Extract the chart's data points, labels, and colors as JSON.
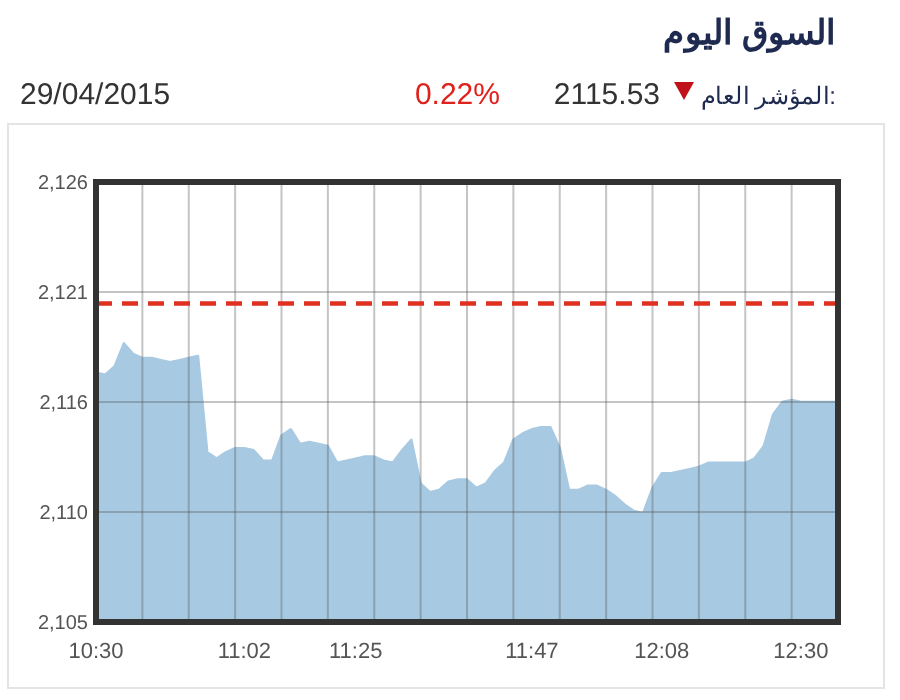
{
  "chart_data": {
    "type": "area",
    "title": "السوق اليوم",
    "annotations": [
      "المؤشر العام:",
      "2115.53",
      "0.22%",
      "29/04/2015"
    ],
    "categories": [
      "10:30",
      null,
      null,
      null,
      null,
      null,
      null,
      null,
      null,
      null,
      null,
      null,
      null,
      null,
      null,
      null,
      "11:02",
      null,
      null,
      null,
      null,
      null,
      null,
      null,
      null,
      null,
      null,
      null,
      "11:25",
      null,
      null,
      null,
      null,
      null,
      null,
      null,
      null,
      null,
      null,
      null,
      null,
      null,
      null,
      null,
      null,
      null,
      null,
      "11:47",
      null,
      null,
      null,
      null,
      null,
      null,
      null,
      null,
      null,
      null,
      null,
      null,
      null,
      "12:08",
      null,
      null,
      null,
      null,
      null,
      null,
      null,
      null,
      null,
      null,
      null,
      null,
      null,
      null,
      "12:30",
      null,
      null,
      null,
      null
    ],
    "series": [
      {
        "color": "#a7c9e2",
        "values": [
          2116.9,
          2116.8,
          2117.2,
          2118.3,
          2117.8,
          2117.6,
          2117.6,
          2117.5,
          2117.4,
          2117.5,
          2117.6,
          2117.7,
          2113.1,
          2112.8,
          2113.1,
          2113.3,
          2113.3,
          2113.2,
          2112.7,
          2112.7,
          2113.9,
          2114.2,
          2113.5,
          2113.6,
          2113.5,
          2113.4,
          2112.6,
          2112.7,
          2112.8,
          2112.9,
          2112.9,
          2112.7,
          2112.6,
          2113.2,
          2113.7,
          2111.6,
          2111.2,
          2111.3,
          2111.7,
          2111.8,
          2111.8,
          2111.4,
          2111.6,
          2112.2,
          2112.6,
          2113.7,
          2114.0,
          2114.2,
          2114.3,
          2114.3,
          2113.3,
          2111.3,
          2111.3,
          2111.5,
          2111.5,
          2111.3,
          2111.0,
          2110.6,
          2110.3,
          2110.2,
          2111.4,
          2112.1,
          2112.1,
          2112.2,
          2112.3,
          2112.4,
          2112.6,
          2112.6,
          2112.6,
          2112.6,
          2112.6,
          2112.8,
          2113.4,
          2114.9,
          2115.5,
          2115.6,
          2115.5,
          2115.5,
          2115.5,
          2115.5,
          2115.5
        ]
      }
    ],
    "ylim": [
      2105,
      2126
    ],
    "yticks": [
      {
        "value": 2105,
        "label": "2,105"
      },
      {
        "value": 2110.25,
        "label": "2,110"
      },
      {
        "value": 2115.5,
        "label": "2,116"
      },
      {
        "value": 2120.75,
        "label": "2,121"
      },
      {
        "value": 2126,
        "label": "2,126"
      }
    ],
    "ref_lines": [
      {
        "axis": "y",
        "value": 2120.2,
        "color": "#e03020",
        "line_style": "dashed"
      }
    ],
    "grid": true
  }
}
